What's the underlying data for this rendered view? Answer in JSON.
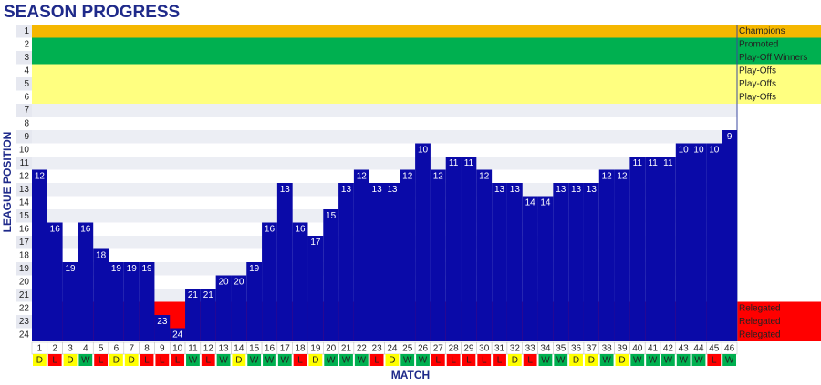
{
  "chart_data": {
    "type": "position-bar",
    "title": "SEASON PROGRESS",
    "x_label": "MATCH",
    "y_label": "LEAGUE POSITION",
    "categories": [
      1,
      2,
      3,
      4,
      5,
      6,
      7,
      8,
      9,
      10,
      11,
      12,
      13,
      14,
      15,
      16,
      17,
      18,
      19,
      20,
      21,
      22,
      23,
      24,
      25,
      26,
      27,
      28,
      29,
      30,
      31,
      32,
      33,
      34,
      35,
      36,
      37,
      38,
      39,
      40,
      41,
      42,
      43,
      44,
      45,
      46
    ],
    "values": [
      12,
      16,
      19,
      16,
      18,
      19,
      19,
      19,
      23,
      24,
      21,
      21,
      20,
      20,
      19,
      16,
      13,
      16,
      17,
      15,
      13,
      12,
      13,
      13,
      12,
      10,
      12,
      11,
      11,
      12,
      13,
      13,
      14,
      14,
      13,
      13,
      13,
      12,
      12,
      11,
      11,
      11,
      10,
      10,
      10,
      9
    ],
    "results": [
      "D",
      "L",
      "D",
      "W",
      "L",
      "D",
      "D",
      "L",
      "L",
      "L",
      "W",
      "L",
      "W",
      "D",
      "W",
      "W",
      "W",
      "L",
      "D",
      "W",
      "W",
      "W",
      "L",
      "D",
      "W",
      "W",
      "L",
      "L",
      "L",
      "L",
      "L",
      "D",
      "L",
      "W",
      "W",
      "D",
      "D",
      "W",
      "D",
      "W",
      "W",
      "W",
      "W",
      "W",
      "L",
      "W"
    ],
    "result_colors": {
      "W": "#00b050",
      "D": "#ffff00",
      "L": "#ff0000"
    },
    "color": "#0a0aa8",
    "ylim": [
      0.5,
      24.5
    ],
    "inverted": true,
    "yticks": [
      1,
      2,
      3,
      4,
      5,
      6,
      7,
      8,
      9,
      10,
      11,
      12,
      13,
      14,
      15,
      16,
      17,
      18,
      19,
      20,
      21,
      22,
      23,
      24
    ],
    "zones": [
      {
        "position": 1,
        "label": "Champions",
        "color": "#f5b700"
      },
      {
        "position": 2,
        "label": "Promoted",
        "color": "#00b050"
      },
      {
        "position": 3,
        "label": "Play-Off Winners",
        "color": "#00b050"
      },
      {
        "position": 4,
        "label": "Play-Offs",
        "color": "#ffff80"
      },
      {
        "position": 5,
        "label": "Play-Offs",
        "color": "#ffff80"
      },
      {
        "position": 6,
        "label": "Play-Offs",
        "color": "#ffff80"
      },
      {
        "position": 22,
        "label": "Relegated",
        "color": "#ff0000"
      },
      {
        "position": 23,
        "label": "Relegated",
        "color": "#ff0000"
      },
      {
        "position": 24,
        "label": "Relegated",
        "color": "#ff0000"
      }
    ]
  }
}
